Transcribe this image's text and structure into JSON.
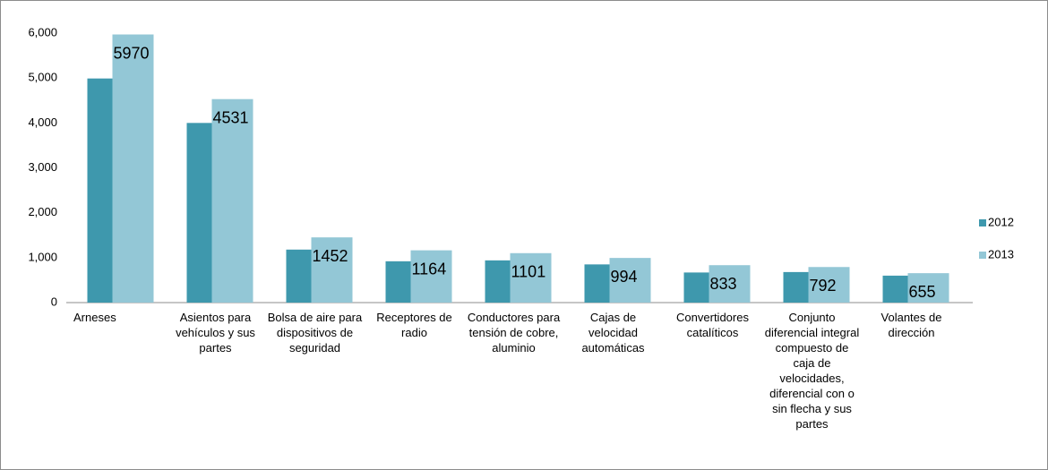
{
  "chart_data": {
    "type": "bar",
    "categories": [
      "Arneses",
      "Asientos para vehículos y sus partes",
      "Bolsa de aire para dispositivos de seguridad",
      "Receptores de radio",
      "Conductores para tensión de cobre, aluminio",
      "Cajas de velocidad automáticas",
      "Convertidores catalíticos",
      "Conjunto diferencial integral compuesto de caja de velocidades, diferencial con o sin flecha y sus partes",
      "Volantes de dirección"
    ],
    "series": [
      {
        "name": "2012",
        "color": "#3e98ad",
        "values": [
          4990,
          4000,
          1180,
          920,
          940,
          850,
          670,
          680,
          600
        ]
      },
      {
        "name": "2013",
        "color": "#93c7d6",
        "values": [
          5970,
          4531,
          1452,
          1164,
          1101,
          994,
          833,
          792,
          655
        ]
      }
    ],
    "ylim": [
      0,
      6000
    ],
    "yticks": [
      0,
      {
        "value": 1000,
        "label": "1,000"
      },
      {
        "value": 2000,
        "label": "2,000"
      },
      {
        "value": 3000,
        "label": "3,000"
      },
      {
        "value": 4000,
        "label": "4,000"
      },
      {
        "value": 5000,
        "label": "5,000"
      },
      {
        "value": 6000,
        "label": "6,000"
      }
    ],
    "grid": false,
    "legend": "right"
  }
}
